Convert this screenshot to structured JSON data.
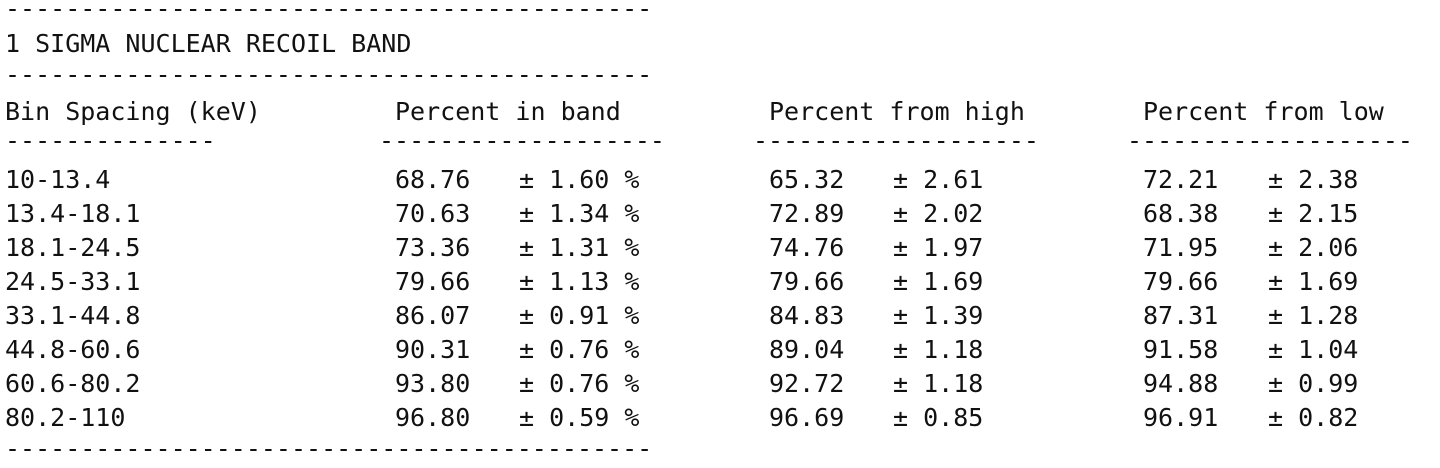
{
  "top_rule": "-------------------------------------------",
  "title": "1 SIGMA NUCLEAR RECOIL BAND",
  "mid_rule": "-------------------------------------------",
  "bottom_rule": "-------------------------------------------",
  "headers": {
    "bin": "Bin Spacing (keV)",
    "in_band": "Percent in band",
    "from_high": "Percent from high",
    "from_low": "Percent from low"
  },
  "header_rules": {
    "bin": "--------------",
    "in_band": "-------------------",
    "from_high": "-------------------",
    "from_low": "-------------------"
  },
  "rows": [
    {
      "bin": "10-13.4",
      "in_band": "68.76",
      "in_band_err": "± 1.60 %",
      "from_high": "65.32",
      "from_high_err": "± 2.61",
      "from_low": "72.21",
      "from_low_err": "± 2.38"
    },
    {
      "bin": "13.4-18.1",
      "in_band": "70.63",
      "in_band_err": "± 1.34 %",
      "from_high": "72.89",
      "from_high_err": "± 2.02",
      "from_low": "68.38",
      "from_low_err": "± 2.15"
    },
    {
      "bin": "18.1-24.5",
      "in_band": "73.36",
      "in_band_err": "± 1.31 %",
      "from_high": "74.76",
      "from_high_err": "± 1.97",
      "from_low": "71.95",
      "from_low_err": "± 2.06"
    },
    {
      "bin": "24.5-33.1",
      "in_band": "79.66",
      "in_band_err": "± 1.13 %",
      "from_high": "79.66",
      "from_high_err": "± 1.69",
      "from_low": "79.66",
      "from_low_err": "± 1.69"
    },
    {
      "bin": "33.1-44.8",
      "in_band": "86.07",
      "in_band_err": "± 0.91 %",
      "from_high": "84.83",
      "from_high_err": "± 1.39",
      "from_low": "87.31",
      "from_low_err": "± 1.28"
    },
    {
      "bin": "44.8-60.6",
      "in_band": "90.31",
      "in_band_err": "± 0.76 %",
      "from_high": "89.04",
      "from_high_err": "± 1.18",
      "from_low": "91.58",
      "from_low_err": "± 1.04"
    },
    {
      "bin": "60.6-80.2",
      "in_band": "93.80",
      "in_band_err": "± 0.76 %",
      "from_high": "92.72",
      "from_high_err": "± 1.18",
      "from_low": "94.88",
      "from_low_err": "± 0.99"
    },
    {
      "bin": "80.2-110",
      "in_band": "96.80",
      "in_band_err": "± 0.59 %",
      "from_high": "96.69",
      "from_high_err": "± 0.85",
      "from_low": "96.91",
      "from_low_err": "± 0.82"
    }
  ]
}
